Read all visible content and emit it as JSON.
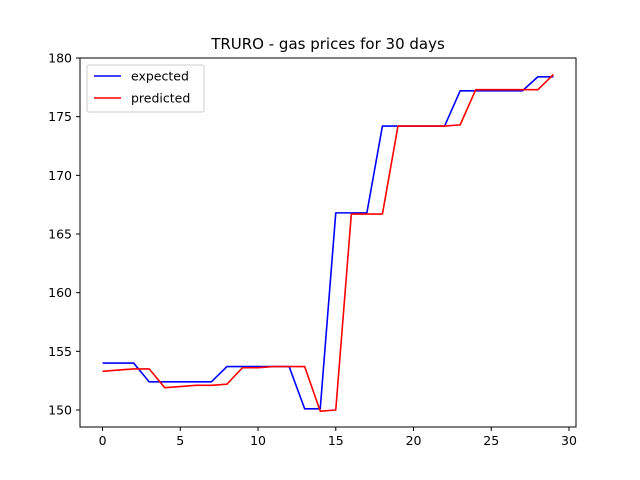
{
  "chart_data": {
    "type": "line",
    "title": "TRURO - gas prices for 30 days",
    "xlabel": "",
    "ylabel": "",
    "xlim": [
      -1.45,
      30.45
    ],
    "ylim": [
      148.55,
      180.0
    ],
    "xticks": [
      0,
      5,
      10,
      15,
      20,
      25,
      30
    ],
    "yticks": [
      150,
      155,
      160,
      165,
      170,
      175,
      180
    ],
    "grid": false,
    "legend_position": "top-left",
    "x": [
      0,
      1,
      2,
      3,
      4,
      5,
      6,
      7,
      8,
      9,
      10,
      11,
      12,
      13,
      14,
      15,
      16,
      17,
      18,
      19,
      20,
      21,
      22,
      23,
      24,
      25,
      26,
      27,
      28,
      29
    ],
    "series": [
      {
        "name": "expected",
        "color": "#0000ff",
        "values": [
          154.0,
          154.0,
          154.0,
          152.4,
          152.4,
          152.4,
          152.4,
          152.4,
          153.7,
          153.7,
          153.7,
          153.7,
          153.7,
          150.1,
          150.1,
          166.8,
          166.8,
          166.8,
          174.2,
          174.2,
          174.2,
          174.2,
          174.2,
          177.2,
          177.2,
          177.2,
          177.2,
          177.2,
          178.4,
          178.4
        ]
      },
      {
        "name": "predicted",
        "color": "#ff0000",
        "values": [
          153.3,
          153.4,
          153.5,
          153.5,
          151.9,
          152.0,
          152.1,
          152.1,
          152.2,
          153.6,
          153.6,
          153.7,
          153.7,
          153.7,
          149.9,
          150.0,
          166.7,
          166.7,
          166.7,
          174.2,
          174.2,
          174.2,
          174.2,
          174.3,
          177.3,
          177.3,
          177.3,
          177.3,
          177.3,
          178.6
        ]
      }
    ]
  }
}
